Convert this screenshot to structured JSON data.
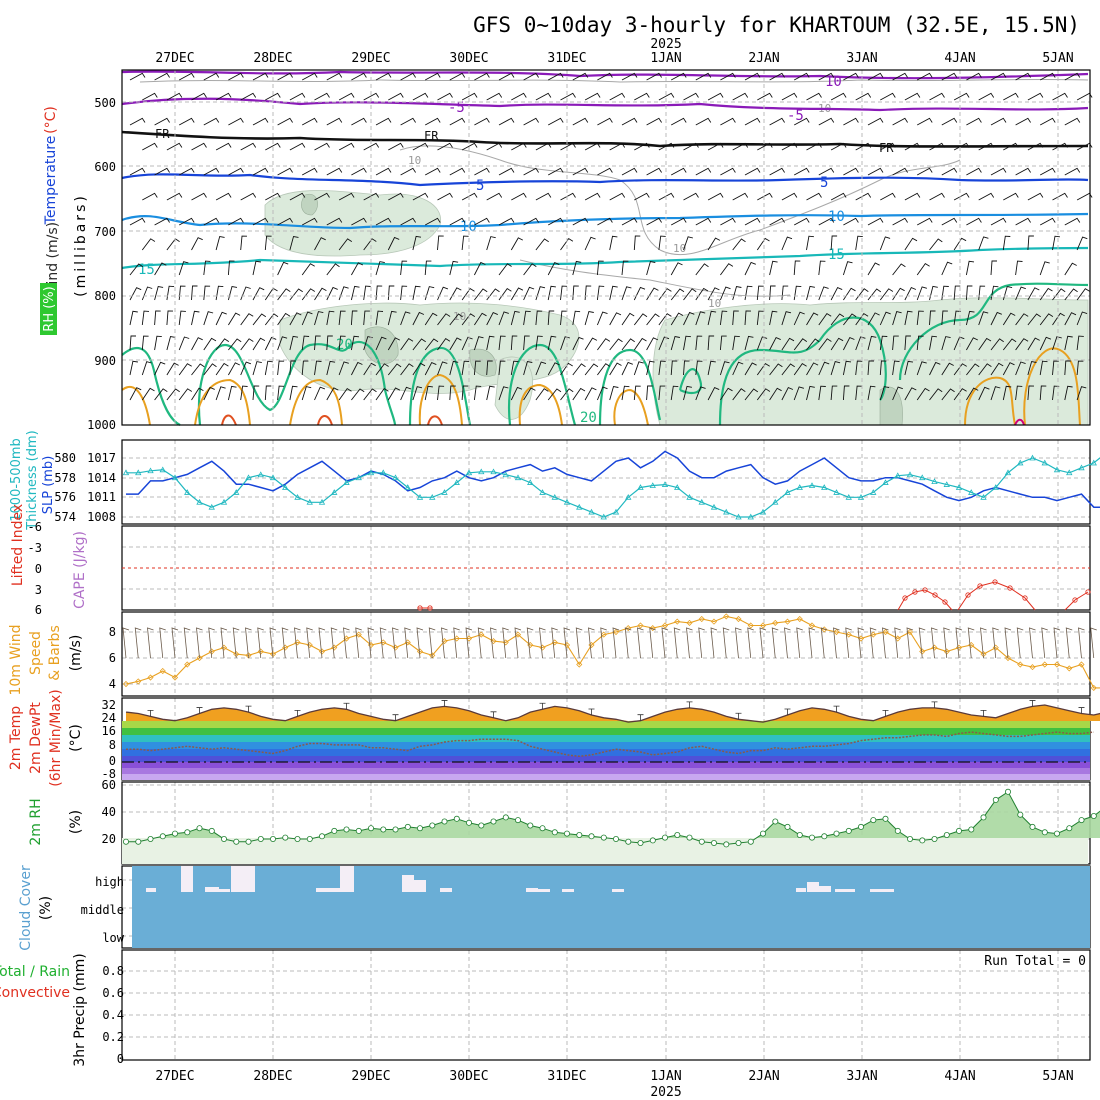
{
  "title": "GFS 0~10day 3-hourly for KHARTOUM (32.5E, 15.5N)",
  "year_label": "2025",
  "dates": [
    "27DEC",
    "28DEC",
    "29DEC",
    "30DEC",
    "31DEC",
    "1JAN",
    "2JAN",
    "3JAN",
    "4JAN",
    "5JAN"
  ],
  "colors": {
    "purple": "#8a1ab8",
    "black": "#111111",
    "blue": "#1744d8",
    "lightblue": "#1a8ee0",
    "teal": "#18b8b8",
    "green": "#20b880",
    "orange": "#e8a020",
    "red": "#e03020",
    "cyan": "#20b8c0",
    "cloud": "#6aaed6"
  },
  "panels": [
    {
      "id": "upper",
      "ylabel": [
        "Wind (m/s)",
        "Temperature (°C)",
        "RH (%)",
        "(millibars)"
      ],
      "ticks": [
        "500",
        "600",
        "700",
        "800",
        "900",
        "1000"
      ]
    },
    {
      "id": "slp",
      "ylabel": [
        "1000-500mb",
        "Thickness (dm)",
        "SLP (mb)"
      ],
      "left_ticks": [
        "580",
        "578",
        "576",
        "574"
      ],
      "right_ticks": [
        "1017",
        "1014",
        "1011",
        "1008"
      ]
    },
    {
      "id": "li",
      "ylabel": [
        "Lifted Index",
        "CAPE (J/kg)"
      ],
      "ticks": [
        "-6",
        "-3",
        "0",
        "3",
        "6"
      ]
    },
    {
      "id": "wind10",
      "ylabel": [
        "10m Wind",
        "Speed",
        "& Barbs",
        "(m/s)"
      ],
      "ticks": [
        "8",
        "6",
        "4"
      ]
    },
    {
      "id": "temp2m",
      "ylabel": [
        "2m Temp",
        "2m DewPt",
        "(6hr Min/Max)",
        "(°C)"
      ],
      "ticks": [
        "32",
        "24",
        "16",
        "8",
        "0",
        "-8"
      ]
    },
    {
      "id": "rh2m",
      "ylabel": [
        "2m RH",
        "(%)"
      ],
      "ticks": [
        "60",
        "40",
        "20"
      ]
    },
    {
      "id": "cloud",
      "ylabel": [
        "Cloud Cover",
        "(%)"
      ],
      "ticks": [
        "high",
        "middle",
        "low"
      ]
    },
    {
      "id": "precip",
      "ylabel": [
        "Total / Rain",
        "Convective",
        "3hr Precip (mm)"
      ],
      "ticks": [
        "0.8",
        "0.6",
        "0.4",
        "0.2",
        "0"
      ]
    }
  ],
  "contour_labels": {
    "upper": [
      "10",
      "-5",
      "FR",
      "FR",
      "FR",
      "5",
      "5",
      "10",
      "10",
      "15",
      "15",
      "20",
      "20"
    ]
  },
  "run_total_label": "Run Total = 0",
  "chart_data": [
    {
      "type": "line",
      "title": "Sea Level Pressure",
      "ylabel": "SLP (mb)",
      "x_start": "2024-12-26 12Z",
      "x_step_hours": 3,
      "series": [
        {
          "name": "SLP (mb)",
          "values": [
            1011.5,
            1011.5,
            1013.5,
            1013.5,
            1014,
            1014.5,
            1015.5,
            1016.5,
            1015,
            1013,
            1013,
            1012.5,
            1012,
            1013,
            1014.5,
            1015.5,
            1016.5,
            1015,
            1013.5,
            1014,
            1015,
            1014.5,
            1013.5,
            1012,
            1012.5,
            1013.5,
            1014,
            1015,
            1014,
            1013.5,
            1014,
            1015,
            1015.5,
            1016,
            1015,
            1015.5,
            1014.5,
            1014,
            1013.5,
            1015,
            1016.5,
            1017,
            1015.5,
            1016.5,
            1018,
            1017,
            1015,
            1014,
            1014,
            1015,
            1015.5,
            1016,
            1014,
            1013,
            1013.5,
            1015,
            1016,
            1017,
            1015.5,
            1014,
            1013.5,
            1013.5,
            1014,
            1014,
            1013.5,
            1013,
            1012,
            1011,
            1010.5,
            1011,
            1012,
            1012.5,
            1012,
            1011.5,
            1011,
            1011,
            1010.5,
            1011,
            1011.5,
            1009.5,
            1009.5,
            1009.5,
            1010.5,
            1010,
            1009.5,
            1009.5,
            1008.5,
            1008,
            1008,
            1008.5,
            1008.5,
            1009.5,
            1010.5
          ]
        },
        {
          "name": "1000-500mb Thickness (dm)",
          "values": [
            578.5,
            578.5,
            578.7,
            578.8,
            578,
            576.5,
            575.5,
            575,
            575.5,
            576.5,
            578,
            578.3,
            578,
            577,
            576,
            575.5,
            575.5,
            576.5,
            577.5,
            578,
            578.5,
            578.5,
            578,
            577,
            576,
            576,
            576.5,
            577.5,
            578.5,
            578.6,
            578.6,
            578.3,
            578,
            577.5,
            576.5,
            576,
            575.5,
            575,
            574.5,
            574,
            574.5,
            576,
            577,
            577.2,
            577.3,
            577,
            576,
            575.5,
            575,
            574.5,
            574,
            574,
            574.5,
            575.5,
            576.5,
            577,
            577.2,
            577,
            576.5,
            576,
            576,
            576.5,
            577.5,
            578.2,
            578.3,
            578,
            577.6,
            577.3,
            577,
            576.5,
            576,
            577,
            578.5,
            579.5,
            580,
            579.5,
            578.8,
            578.5,
            579,
            579.5,
            580.5,
            581.3,
            581,
            580.5,
            580,
            579.7,
            579.5,
            579.3
          ]
        }
      ]
    },
    {
      "type": "line",
      "title": "10m Wind Speed",
      "ylabel": "(m/s)",
      "x_start": "2024-12-26 12Z",
      "x_step_hours": 3,
      "series": [
        {
          "name": "10m Wind Speed",
          "values": [
            4,
            4.2,
            4.5,
            5,
            4.5,
            5.5,
            6,
            6.5,
            6.8,
            6.3,
            6.2,
            6.5,
            6.3,
            6.8,
            7.2,
            7,
            6.5,
            6.8,
            7.5,
            7.8,
            7,
            7.2,
            6.8,
            7.2,
            6.5,
            6.2,
            7.3,
            7.5,
            7.5,
            7.8,
            7.3,
            7.2,
            7.8,
            7,
            6.8,
            7.2,
            7,
            5.5,
            7,
            7.8,
            8,
            8.3,
            8.5,
            8.3,
            8.5,
            8.8,
            8.7,
            9,
            8.8,
            9.2,
            9,
            8.5,
            8.5,
            8.7,
            8.8,
            9,
            8.5,
            8.2,
            8,
            7.8,
            7.5,
            7.8,
            8,
            7.5,
            8,
            6.5,
            6.8,
            6.5,
            6.8,
            7,
            6.3,
            6.8,
            6,
            5.5,
            5.3,
            5.5,
            5.5,
            5.2,
            5.5,
            3.7,
            3.7,
            4.8,
            5,
            4.8,
            4.5,
            4.8,
            5.2,
            5.8,
            4.2,
            3.8,
            3.7,
            4,
            4.2,
            4.8,
            5.2,
            5.5,
            5.3,
            5.2
          ]
        }
      ]
    },
    {
      "type": "line",
      "title": "2m Relative Humidity",
      "ylabel": "(%)",
      "x_start": "2024-12-26 12Z",
      "x_step_hours": 3,
      "series": [
        {
          "name": "2m RH",
          "values": [
            18,
            18,
            20,
            22,
            24,
            25,
            28,
            26,
            20,
            18,
            18,
            20,
            20,
            21,
            20,
            20,
            22,
            26,
            27,
            26,
            28,
            27,
            27,
            29,
            28,
            30,
            33,
            35,
            32,
            30,
            33,
            36,
            34,
            30,
            28,
            25,
            24,
            23,
            22,
            21,
            20,
            18,
            17,
            19,
            21,
            23,
            21,
            18,
            17,
            16,
            17,
            18,
            24,
            33,
            29,
            23,
            21,
            22,
            24,
            26,
            29,
            34,
            35,
            26,
            20,
            19,
            20,
            23,
            26,
            27,
            36,
            49,
            55,
            38,
            29,
            25,
            24,
            28,
            34,
            37,
            44,
            58,
            59,
            40,
            30,
            24,
            25,
            27,
            31,
            33,
            45,
            52,
            53
          ]
        }
      ]
    },
    {
      "type": "area",
      "title": "2m Temperature",
      "ylabel": "(°C)",
      "x_start": "2024-12-26 12Z",
      "x_step_hours": 3,
      "series": [
        {
          "name": "2m Temp",
          "values": [
            27,
            26,
            24,
            22,
            21,
            23,
            26,
            29,
            30,
            29,
            27,
            24,
            22,
            21,
            24,
            27,
            29,
            30,
            29,
            26,
            24,
            22,
            21,
            24,
            27,
            30,
            31,
            30,
            28,
            25,
            23,
            21,
            23,
            27,
            29,
            31,
            30,
            28,
            25,
            23,
            22,
            20,
            21,
            24,
            27,
            29,
            30,
            29,
            27,
            24,
            22,
            21,
            20,
            22,
            25,
            28,
            30,
            29,
            27,
            24,
            22,
            21,
            24,
            27,
            29,
            30,
            30,
            29,
            27,
            25,
            24,
            23,
            26,
            29,
            31,
            32,
            30,
            28,
            26,
            25,
            27,
            30,
            33,
            33,
            31,
            28,
            26,
            25
          ]
        },
        {
          "name": "2m DewPt",
          "values": [
            1,
            1,
            0,
            1,
            2,
            3,
            2,
            1,
            2,
            1,
            0,
            -1,
            -2,
            0,
            3,
            5,
            5,
            4,
            4,
            4,
            2,
            2,
            1,
            0,
            3,
            4,
            6,
            7,
            7,
            8,
            8,
            8,
            7,
            3,
            1,
            -1,
            -3,
            -4,
            -3,
            -1,
            1,
            0,
            -1,
            -3,
            -2,
            -1,
            2,
            3,
            1,
            -1,
            -2,
            0,
            0,
            2,
            1,
            2,
            3,
            3,
            4,
            5,
            7,
            8,
            9,
            9,
            10,
            11,
            11,
            10,
            12,
            13,
            12,
            11,
            10,
            10,
            11,
            12,
            13,
            12,
            12,
            13
          ]
        }
      ]
    }
  ]
}
